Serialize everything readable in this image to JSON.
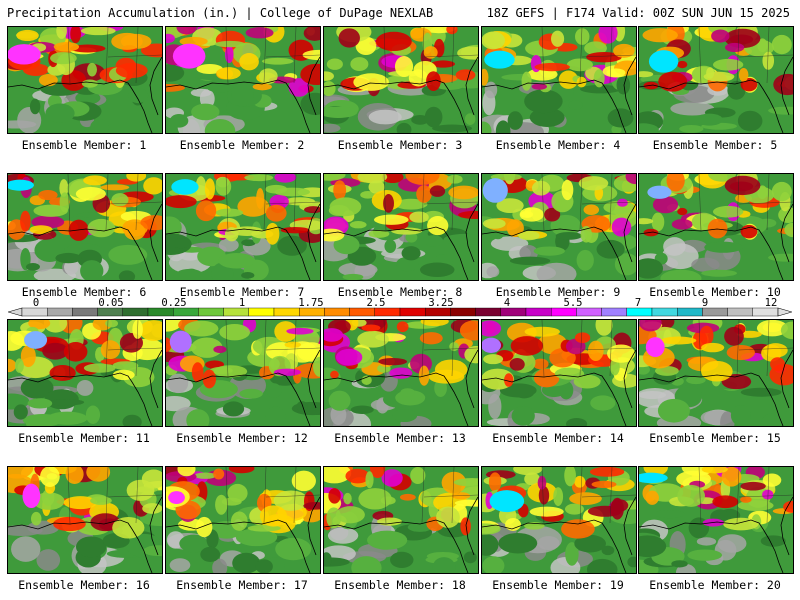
{
  "header": {
    "title": "Precipitation Accumulation (in.) | College of DuPage NEXLAB",
    "run_info": "18Z GEFS | F174 Valid: 00Z SUN JUN 15 2025"
  },
  "colorbar": {
    "tick_labels": [
      "0",
      "0.05",
      "0.25",
      "1",
      "1.75",
      "2.5",
      "3.25",
      "4",
      "5.5",
      "7",
      "9",
      "12"
    ],
    "colors": [
      "#d8d8d8",
      "#a9a9a9",
      "#7a7a7a",
      "#4f7f4f",
      "#2f6f2f",
      "#2a8a2a",
      "#39a83a",
      "#6ec83a",
      "#b6e23b",
      "#ffff00",
      "#ffd700",
      "#ffb000",
      "#ff8c00",
      "#ff5a00",
      "#ff2a00",
      "#e00000",
      "#b40000",
      "#8b0000",
      "#7a0030",
      "#a0007a",
      "#c800c8",
      "#ff00ff",
      "#d060ff",
      "#a080ff",
      "#00ffff",
      "#40d8e0",
      "#20b8c8",
      "#9a9a9a",
      "#c0c0c0",
      "#e0e0e0"
    ]
  },
  "members": [
    {
      "label": "Ensemble Member: 1"
    },
    {
      "label": "Ensemble Member: 2"
    },
    {
      "label": "Ensemble Member: 3"
    },
    {
      "label": "Ensemble Member: 4"
    },
    {
      "label": "Ensemble Member: 5"
    },
    {
      "label": "Ensemble Member: 6"
    },
    {
      "label": "Ensemble Member: 7"
    },
    {
      "label": "Ensemble Member: 8"
    },
    {
      "label": "Ensemble Member: 9"
    },
    {
      "label": "Ensemble Member: 10"
    },
    {
      "label": "Ensemble Member: 11"
    },
    {
      "label": "Ensemble Member: 12"
    },
    {
      "label": "Ensemble Member: 13"
    },
    {
      "label": "Ensemble Member: 14"
    },
    {
      "label": "Ensemble Member: 15"
    },
    {
      "label": "Ensemble Member: 16"
    },
    {
      "label": "Ensemble Member: 17"
    },
    {
      "label": "Ensemble Member: 18"
    },
    {
      "label": "Ensemble Member: 19"
    },
    {
      "label": "Ensemble Member: 20"
    }
  ]
}
